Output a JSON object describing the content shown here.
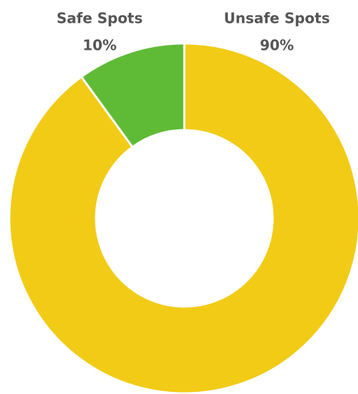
{
  "chart_data": {
    "type": "donut",
    "categories": [
      "Unsafe Spots",
      "Safe Spots"
    ],
    "values": [
      90,
      10
    ],
    "value_labels": [
      "90%",
      "10%"
    ],
    "colors": [
      "#f2cb16",
      "#5fbb36"
    ]
  }
}
